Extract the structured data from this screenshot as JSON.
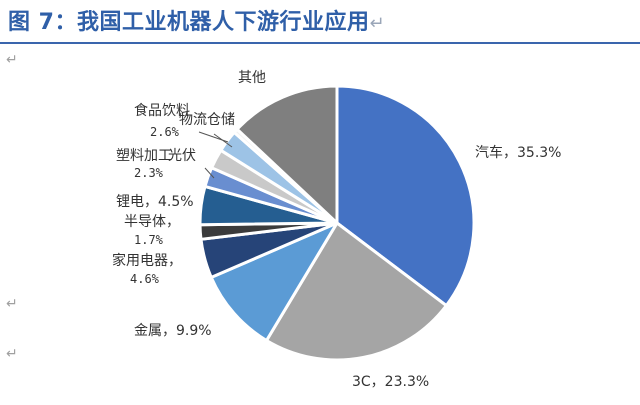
{
  "title": {
    "figure": "图 7",
    "sep": "：",
    "text": "我国工业机器人下游行业应用",
    "mark": "↵"
  },
  "para_marks": [
    "↵",
    "↵",
    "↵"
  ],
  "chart_data": {
    "type": "pie",
    "start": "12 o'clock, clockwise",
    "slices": [
      {
        "label": "汽车",
        "value_text": "35.3%",
        "value": 35.3,
        "color": "#4472c4"
      },
      {
        "label": "3C",
        "value_text": "23.3%",
        "value": 23.3,
        "color": "#a5a5a5"
      },
      {
        "label": "金属",
        "value_text": "9.9%",
        "value": 9.9,
        "color": "#5b9bd5"
      },
      {
        "label": "家用电器",
        "value_text": "4.6%",
        "value": 4.6,
        "color": "#264478"
      },
      {
        "label": "半导体",
        "value_text": "1.7%",
        "value": 1.7,
        "color": "#3b3b3b"
      },
      {
        "label": "锂电",
        "value_text": "4.5%",
        "value": 4.5,
        "color": "#255e91"
      },
      {
        "label": "光伏",
        "value_text": "2.3%",
        "value": 2.3,
        "color": "#698ed0"
      },
      {
        "label": "塑料加工",
        "value_text": "",
        "value": 2.3,
        "color": "#c9c9c9"
      },
      {
        "label": "食品饮料",
        "value_text": "2.6%",
        "value": 2.6,
        "color": "#9dc3e6"
      },
      {
        "label": "物流仓储",
        "value_text": "",
        "value": 0.5,
        "color": "#f2f2f2"
      },
      {
        "label": "其他",
        "value_text": "",
        "value": 13.0,
        "color": "#7f7f7f"
      }
    ],
    "labels": {
      "car": "汽车，35.3%",
      "c3": "3C，23.3%",
      "metal": "金属，9.9%",
      "appliance_name": "家用电器，",
      "appliance_val": "4.6%",
      "semi_name": "半导体，",
      "semi_val": "1.7%",
      "lithium": "锂电，4.5%",
      "plastic_name": "塑料加工",
      "plastic_val": "2.3%",
      "pv": "光伏",
      "food_name": "食品饮料",
      "food_val": "2.6%",
      "logistics": "物流仓储",
      "other": "其他"
    }
  }
}
